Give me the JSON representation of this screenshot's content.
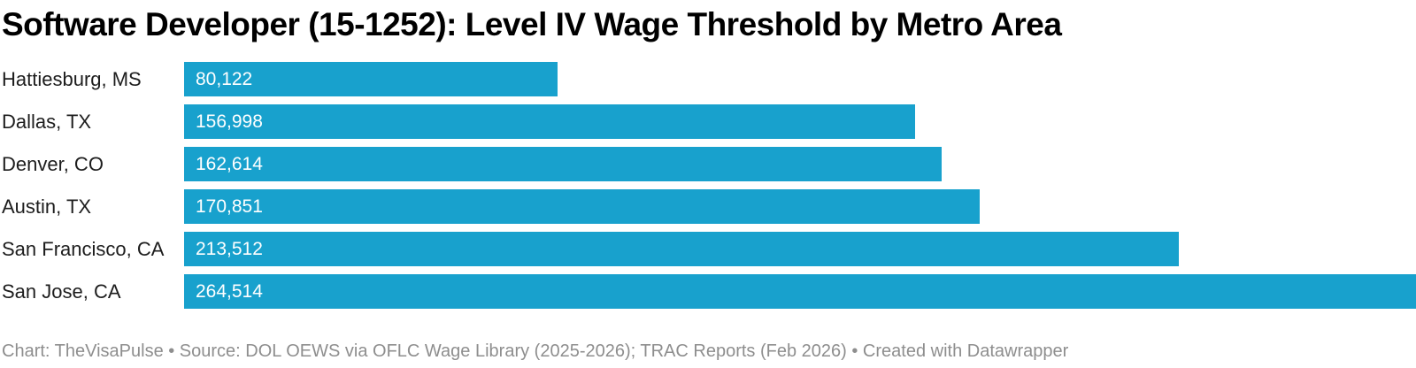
{
  "title": "Software Developer (15-1252): Level IV Wage Threshold by Metro Area",
  "footer": "Chart: TheVisaPulse • Source: DOL OEWS via OFLC Wage Library (2025-2026); TRAC Reports (Feb 2026) • Created with Datawrapper",
  "colors": {
    "bar": "#18a1cd",
    "title": "#000000",
    "category_label": "#1d1d1d",
    "value_label": "#ffffff",
    "footer": "#8e8e8e",
    "background": "#ffffff"
  },
  "chart_data": {
    "type": "bar",
    "orientation": "horizontal",
    "title": "Software Developer (15-1252): Level IV Wage Threshold by Metro Area",
    "categories": [
      "Hattiesburg, MS",
      "Dallas, TX",
      "Denver, CO",
      "Austin, TX",
      "San Francisco, CA",
      "San Jose, CA"
    ],
    "values": [
      80122,
      156998,
      162614,
      170851,
      213512,
      264514
    ],
    "value_labels": [
      "80,122",
      "156,998",
      "162,614",
      "170,851",
      "213,512",
      "264,514"
    ],
    "xlabel": "",
    "ylabel": "",
    "xlim": [
      0,
      264514
    ],
    "grid": false,
    "legend": false,
    "bar_color": "#18a1cd",
    "value_label_position": "inside-start"
  }
}
